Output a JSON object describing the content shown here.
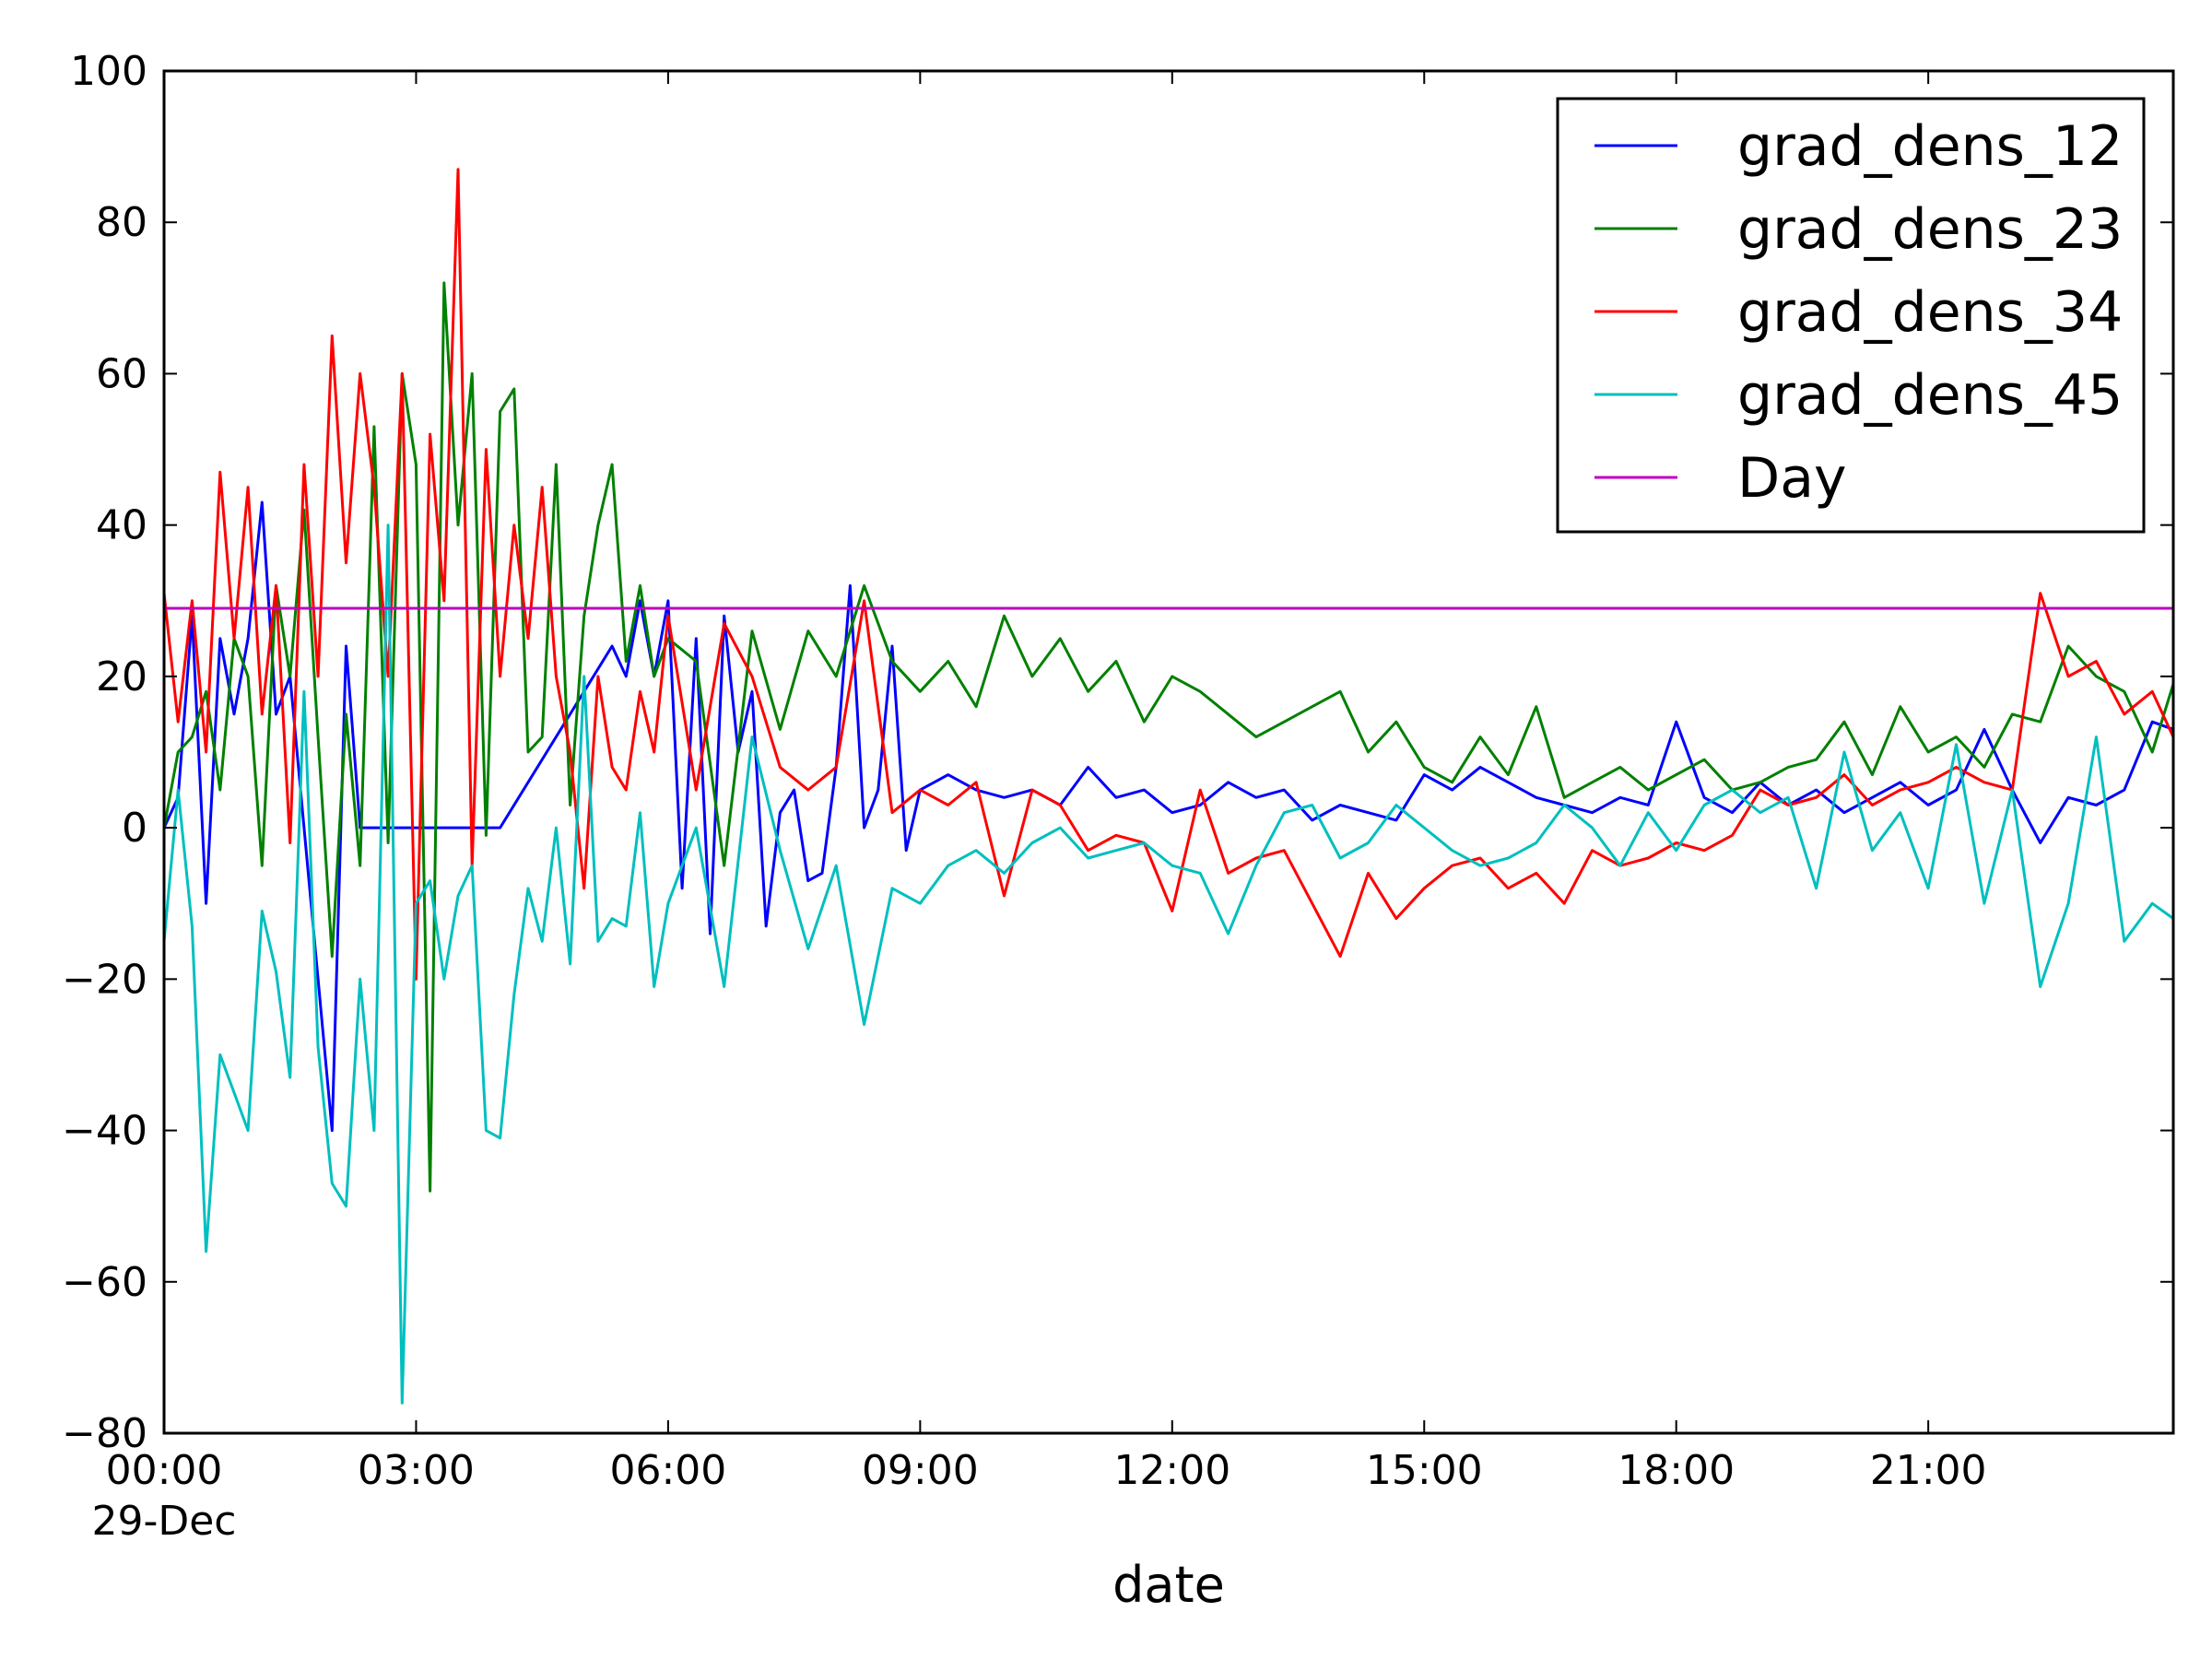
{
  "chart_data": {
    "type": "line",
    "xlabel": "date",
    "ylabel": "",
    "title": "",
    "ylim": [
      -80,
      100
    ],
    "xlim": [
      "2013-12-29 00:00",
      "2013-12-29 23:55"
    ],
    "x_ticks": [
      "00:00",
      "03:00",
      "06:00",
      "09:00",
      "12:00",
      "15:00",
      "18:00",
      "21:00"
    ],
    "x_date_label": "29-Dec",
    "y_ticks": [
      "100",
      "80",
      "60",
      "40",
      "20",
      "0",
      "−20",
      "−40",
      "−60",
      "−80"
    ],
    "grid": false,
    "legend_position": "upper right",
    "series": [
      {
        "name": "grad_dens_12",
        "color": "#0000ff",
        "x": [
          "00:00",
          "00:10",
          "00:20",
          "00:30",
          "00:40",
          "00:50",
          "01:00",
          "01:10",
          "01:20",
          "01:30",
          "02:00",
          "02:10",
          "02:20",
          "02:30",
          "03:00",
          "03:20",
          "04:00",
          "05:20",
          "05:30",
          "05:40",
          "05:50",
          "06:00",
          "06:10",
          "06:20",
          "06:30",
          "06:40",
          "06:50",
          "07:00",
          "07:10",
          "07:20",
          "07:30",
          "07:40",
          "07:50",
          "08:00",
          "08:10",
          "08:20",
          "08:30",
          "08:40",
          "08:50",
          "09:00",
          "09:20",
          "09:40",
          "10:00",
          "10:20",
          "10:40",
          "11:00",
          "11:20",
          "11:40",
          "12:00",
          "12:20",
          "12:40",
          "13:00",
          "13:20",
          "13:40",
          "14:00",
          "14:20",
          "14:40",
          "15:00",
          "15:20",
          "15:40",
          "16:00",
          "16:20",
          "16:40",
          "17:00",
          "17:20",
          "17:40",
          "18:00",
          "18:20",
          "18:40",
          "19:00",
          "19:20",
          "19:40",
          "20:00",
          "20:20",
          "20:40",
          "21:00",
          "21:20",
          "21:40",
          "22:00",
          "22:20",
          "22:40",
          "23:00",
          "23:20",
          "23:40",
          "23:55"
        ],
        "y": [
          0,
          4,
          28,
          -10,
          25,
          15,
          25,
          43,
          15,
          20,
          -40,
          24,
          0,
          0,
          0,
          0,
          0,
          24,
          20,
          30,
          20,
          30,
          -8,
          25,
          -14,
          28,
          10,
          18,
          -13,
          2,
          5,
          -7,
          -6,
          8,
          32,
          0,
          5,
          24,
          -3,
          5,
          7,
          5,
          4,
          5,
          3,
          8,
          4,
          5,
          2,
          3,
          6,
          4,
          5,
          1,
          3,
          2,
          1,
          7,
          5,
          8,
          6,
          4,
          3,
          2,
          4,
          3,
          14,
          4,
          2,
          6,
          3,
          5,
          2,
          4,
          6,
          3,
          5,
          13,
          5,
          -2,
          4,
          3,
          5,
          14,
          13
        ]
      },
      {
        "name": "grad_dens_23",
        "color": "#008000",
        "x": [
          "00:00",
          "00:10",
          "00:20",
          "00:30",
          "00:40",
          "00:50",
          "01:00",
          "01:10",
          "01:20",
          "01:30",
          "01:40",
          "01:50",
          "02:00",
          "02:10",
          "02:20",
          "02:30",
          "02:40",
          "02:50",
          "03:00",
          "03:10",
          "03:20",
          "03:30",
          "03:40",
          "03:50",
          "04:00",
          "04:10",
          "04:20",
          "04:30",
          "04:40",
          "04:50",
          "05:00",
          "05:10",
          "05:20",
          "05:30",
          "05:40",
          "05:50",
          "06:00",
          "06:20",
          "06:40",
          "07:00",
          "07:20",
          "07:40",
          "08:00",
          "08:20",
          "08:40",
          "09:00",
          "09:20",
          "09:40",
          "10:00",
          "10:20",
          "10:40",
          "11:00",
          "11:20",
          "11:40",
          "12:00",
          "12:20",
          "12:40",
          "13:00",
          "13:20",
          "13:40",
          "14:00",
          "14:20",
          "14:40",
          "15:00",
          "15:20",
          "15:40",
          "16:00",
          "16:20",
          "16:40",
          "17:00",
          "17:20",
          "17:40",
          "18:00",
          "18:20",
          "18:40",
          "19:00",
          "19:20",
          "19:40",
          "20:00",
          "20:20",
          "20:40",
          "21:00",
          "21:20",
          "21:40",
          "22:00",
          "22:20",
          "22:40",
          "23:00",
          "23:20",
          "23:40",
          "23:55"
        ],
        "y": [
          0,
          10,
          12,
          18,
          5,
          25,
          20,
          -5,
          32,
          20,
          42,
          12,
          -17,
          15,
          -5,
          53,
          -2,
          60,
          48,
          -48,
          72,
          40,
          60,
          -1,
          55,
          58,
          10,
          12,
          48,
          3,
          28,
          40,
          48,
          22,
          32,
          20,
          25,
          22,
          -5,
          26,
          13,
          26,
          20,
          32,
          22,
          18,
          22,
          16,
          28,
          20,
          25,
          18,
          22,
          14,
          20,
          18,
          15,
          12,
          14,
          16,
          18,
          10,
          14,
          8,
          6,
          12,
          7,
          16,
          4,
          6,
          8,
          5,
          7,
          9,
          5,
          6,
          8,
          9,
          14,
          7,
          16,
          10,
          12,
          8,
          15,
          14,
          24,
          20,
          18,
          10,
          19
        ]
      },
      {
        "name": "grad_dens_34",
        "color": "#ff0000",
        "x": [
          "00:00",
          "00:10",
          "00:20",
          "00:30",
          "00:40",
          "00:50",
          "01:00",
          "01:10",
          "01:20",
          "01:30",
          "01:40",
          "01:50",
          "02:00",
          "02:10",
          "02:20",
          "02:30",
          "02:40",
          "02:50",
          "03:00",
          "03:10",
          "03:20",
          "03:30",
          "03:40",
          "03:50",
          "04:00",
          "04:10",
          "04:20",
          "04:30",
          "04:40",
          "04:50",
          "05:00",
          "05:10",
          "05:20",
          "05:30",
          "05:40",
          "05:50",
          "06:00",
          "06:20",
          "06:40",
          "07:00",
          "07:20",
          "07:40",
          "08:00",
          "08:20",
          "08:40",
          "09:00",
          "09:20",
          "09:40",
          "10:00",
          "10:20",
          "10:40",
          "11:00",
          "11:20",
          "11:40",
          "12:00",
          "12:20",
          "12:40",
          "13:00",
          "13:20",
          "13:40",
          "14:00",
          "14:20",
          "14:40",
          "15:00",
          "15:20",
          "15:40",
          "16:00",
          "16:20",
          "16:40",
          "17:00",
          "17:20",
          "17:40",
          "18:00",
          "18:20",
          "18:40",
          "19:00",
          "19:20",
          "19:40",
          "20:00",
          "20:20",
          "20:40",
          "21:00",
          "21:20",
          "21:40",
          "22:00",
          "22:20",
          "22:40",
          "23:00",
          "23:20",
          "23:40",
          "23:55"
        ],
        "y": [
          31,
          14,
          30,
          10,
          47,
          25,
          45,
          15,
          32,
          -2,
          48,
          20,
          65,
          35,
          60,
          45,
          20,
          60,
          -20,
          52,
          30,
          87,
          -5,
          50,
          20,
          40,
          25,
          45,
          20,
          10,
          -8,
          20,
          8,
          5,
          18,
          10,
          28,
          5,
          27,
          20,
          8,
          5,
          8,
          30,
          2,
          5,
          3,
          6,
          -9,
          5,
          3,
          -3,
          -1,
          -2,
          -11,
          5,
          -6,
          -4,
          -3,
          -10,
          -17,
          -6,
          -12,
          -8,
          -5,
          -4,
          -8,
          -6,
          -10,
          -3,
          -5,
          -4,
          -2,
          -3,
          -1,
          5,
          3,
          4,
          7,
          3,
          5,
          6,
          8,
          6,
          5,
          31,
          20,
          22,
          15,
          18,
          12
        ]
      },
      {
        "name": "grad_dens_45",
        "color": "#00bfbf",
        "x": [
          "00:00",
          "00:10",
          "00:20",
          "00:30",
          "00:40",
          "00:50",
          "01:00",
          "01:10",
          "01:20",
          "01:30",
          "01:40",
          "01:50",
          "02:00",
          "02:10",
          "02:20",
          "02:30",
          "02:40",
          "02:50",
          "03:00",
          "03:10",
          "03:20",
          "03:30",
          "03:40",
          "03:50",
          "04:00",
          "04:10",
          "04:20",
          "04:30",
          "04:40",
          "04:50",
          "05:00",
          "05:10",
          "05:20",
          "05:30",
          "05:40",
          "05:50",
          "06:00",
          "06:20",
          "06:40",
          "07:00",
          "07:20",
          "07:40",
          "08:00",
          "08:20",
          "08:40",
          "09:00",
          "09:20",
          "09:40",
          "10:00",
          "10:20",
          "10:40",
          "11:00",
          "11:20",
          "11:40",
          "12:00",
          "12:20",
          "12:40",
          "13:00",
          "13:20",
          "13:40",
          "14:00",
          "14:20",
          "14:40",
          "15:00",
          "15:20",
          "15:40",
          "16:00",
          "16:20",
          "16:40",
          "17:00",
          "17:20",
          "17:40",
          "18:00",
          "18:20",
          "18:40",
          "19:00",
          "19:20",
          "19:40",
          "20:00",
          "20:20",
          "20:40",
          "21:00",
          "21:20",
          "21:40",
          "22:00",
          "22:20",
          "22:40",
          "23:00",
          "23:20",
          "23:40",
          "23:55"
        ],
        "y": [
          -15,
          5,
          -13,
          -56,
          -30,
          -35,
          -40,
          -11,
          -19,
          -33,
          18,
          -29,
          -47,
          -50,
          -20,
          -40,
          40,
          -76,
          -10,
          -7,
          -20,
          -9,
          -5,
          -40,
          -41,
          -22,
          -8,
          -15,
          0,
          -18,
          20,
          -15,
          -12,
          -13,
          2,
          -21,
          -10,
          0,
          -21,
          12,
          -3,
          -16,
          -5,
          -26,
          -8,
          -10,
          -5,
          -3,
          -6,
          -2,
          0,
          -4,
          -3,
          -2,
          -5,
          -6,
          -14,
          -5,
          2,
          3,
          -4,
          -2,
          3,
          0,
          -3,
          -5,
          -4,
          -2,
          3,
          0,
          -5,
          2,
          -3,
          3,
          5,
          2,
          4,
          -8,
          10,
          -3,
          2,
          -8,
          11,
          -10,
          5,
          -21,
          -10,
          12,
          -15,
          -10,
          -12
        ]
      },
      {
        "name": "Day",
        "color": "#bf00bf",
        "x": [
          "00:00",
          "23:55"
        ],
        "y": [
          29,
          29
        ]
      }
    ]
  }
}
